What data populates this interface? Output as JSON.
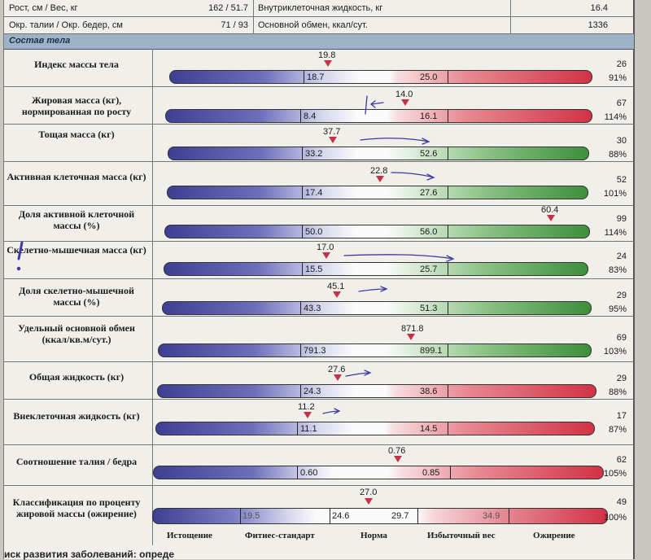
{
  "header": {
    "row1": {
      "label": "Рост, см / Вес, кг",
      "value": "162 / 51.7",
      "label2": "Внутриклеточная жидкость, кг",
      "value2": "16.4"
    },
    "row2": {
      "label": "Окр. талии / Окр. бедер, см",
      "value": "71 / 93",
      "label2": "Основной обмен, ккал/сут.",
      "value2": "1336"
    }
  },
  "section_title": "Состав тела",
  "rows": [
    {
      "label": "Индекс массы тела",
      "low": "18.7",
      "high": "25.0",
      "current": "19.8",
      "num": "26",
      "pct": "91%",
      "bar": "red"
    },
    {
      "label": "Жировая масса (кг), нормированная по росту",
      "low": "8.4",
      "high": "16.1",
      "current": "14.0",
      "num": "67",
      "pct": "114%",
      "bar": "red"
    },
    {
      "label": "Тощая масса (кг)",
      "low": "33.2",
      "high": "52.6",
      "current": "37.7",
      "num": "30",
      "pct": "88%",
      "bar": "green"
    },
    {
      "label": "Активная клеточная масса (кг)",
      "low": "17.4",
      "high": "27.6",
      "current": "22.8",
      "num": "52",
      "pct": "101%",
      "bar": "green"
    },
    {
      "label": "Доля активной клеточной массы (%)",
      "low": "50.0",
      "high": "56.0",
      "current": "60.4",
      "num": "99",
      "pct": "114%",
      "bar": "green"
    },
    {
      "label": "Скелетно-мышечная масса (кг)",
      "low": "15.5",
      "high": "25.7",
      "current": "17.0",
      "num": "24",
      "pct": "83%",
      "bar": "green"
    },
    {
      "label": "Доля скелетно-мышечной массы (%)",
      "low": "43.3",
      "high": "51.3",
      "current": "45.1",
      "num": "29",
      "pct": "95%",
      "bar": "green"
    },
    {
      "label": "Удельный основной обмен (ккал/кв.м/сут.)",
      "low": "791.3",
      "high": "899.1",
      "current": "871.8",
      "num": "69",
      "pct": "103%",
      "bar": "green"
    },
    {
      "label": "Общая жидкость (кг)",
      "low": "24.3",
      "high": "38.6",
      "current": "27.6",
      "num": "29",
      "pct": "88%",
      "bar": "red"
    },
    {
      "label": "Внеклеточная жидкость (кг)",
      "low": "11.1",
      "high": "14.5",
      "current": "11.2",
      "num": "17",
      "pct": "87%",
      "bar": "red"
    },
    {
      "label": "Соотношение талия / бедра",
      "low": "0.60",
      "high": "0.85",
      "current": "0.76",
      "num": "62",
      "pct": "105%",
      "bar": "wh"
    }
  ],
  "classification": {
    "label": "Классификация по проценту жировой массы (ожирение)",
    "marks": [
      "19.5",
      "24.6",
      "29.7",
      "34.9"
    ],
    "current": "27.0",
    "num": "49",
    "pct": "100%",
    "scale": [
      "Истощение",
      "Фитнес-стандарт",
      "Норма",
      "Избыточный вес",
      "Ожирение"
    ]
  },
  "footer": "иск развития заболеваний: опреде"
}
